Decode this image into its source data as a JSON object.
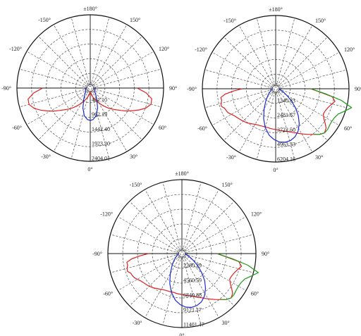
{
  "figure": {
    "colors": {
      "red": "#e02020",
      "blue": "#1a2bd6",
      "green": "#1a9a1a",
      "grid": "#555555",
      "frame": "#111111"
    },
    "angle_labels": {
      "top": "±180°",
      "upper_left": "-150°",
      "upper_right": "150°",
      "left_upper": "-120°",
      "right_upper": "120°",
      "left": "-90°",
      "right": "90°",
      "left_lower": "-60°",
      "right_lower": "60°",
      "lower_left": "-30°",
      "lower_right": "30°",
      "bottom": "0°"
    }
  },
  "chart_data": [
    {
      "type": "polar",
      "ring_labels": [
        "481.10",
        "962.19",
        "1442.40",
        "1923.20",
        "2404.01"
      ],
      "series": [
        {
          "color": "red",
          "points": [
            [
              -90,
              1560
            ],
            [
              -85,
              1860
            ],
            [
              -80,
              2070
            ],
            [
              -75,
              2080
            ],
            [
              -70,
              1950
            ],
            [
              -66,
              1780
            ],
            [
              -62,
              1600
            ],
            [
              -58,
              1430
            ],
            [
              -54,
              1250
            ],
            [
              -50,
              1110
            ],
            [
              -46,
              990
            ],
            [
              -42,
              880
            ],
            [
              -38,
              770
            ],
            [
              -34,
              660
            ],
            [
              -28,
              520
            ],
            [
              -20,
              380
            ],
            [
              -12,
              250
            ],
            [
              -5,
              160
            ],
            [
              0,
              130
            ],
            [
              5,
              160
            ],
            [
              12,
              250
            ],
            [
              20,
              380
            ],
            [
              28,
              520
            ],
            [
              34,
              660
            ],
            [
              38,
              770
            ],
            [
              42,
              880
            ],
            [
              46,
              990
            ],
            [
              50,
              1110
            ],
            [
              54,
              1250
            ],
            [
              58,
              1420
            ],
            [
              62,
              1580
            ],
            [
              66,
              1760
            ],
            [
              70,
              1930
            ],
            [
              75,
              2060
            ],
            [
              80,
              2050
            ],
            [
              85,
              1840
            ],
            [
              90,
              1540
            ]
          ]
        },
        {
          "color": "blue",
          "points": [
            [
              -90,
              140
            ],
            [
              -80,
              150
            ],
            [
              -70,
              160
            ],
            [
              -60,
              175
            ],
            [
              -50,
              200
            ],
            [
              -40,
              280
            ],
            [
              -30,
              430
            ],
            [
              -20,
              700
            ],
            [
              -12,
              930
            ],
            [
              -5,
              1040
            ],
            [
              0,
              1060
            ],
            [
              5,
              1040
            ],
            [
              12,
              930
            ],
            [
              20,
              700
            ],
            [
              30,
              430
            ],
            [
              40,
              280
            ],
            [
              50,
              200
            ],
            [
              60,
              175
            ],
            [
              70,
              160
            ],
            [
              80,
              150
            ],
            [
              90,
              140
            ]
          ]
        }
      ]
    },
    {
      "type": "polar",
      "ring_labels": [
        "1240.83",
        "2481.67",
        "3722.50",
        "4963.33",
        "6204.16"
      ],
      "series": [
        {
          "color": "red",
          "points": [
            [
              -90,
              2840
            ],
            [
              -87,
              3550
            ],
            [
              -84,
              4280
            ],
            [
              -81,
              4700
            ],
            [
              -78,
              4670
            ],
            [
              -75,
              4780
            ],
            [
              -72,
              4830
            ],
            [
              -69,
              4620
            ],
            [
              -66,
              4570
            ],
            [
              -63,
              4500
            ],
            [
              -60,
              4330
            ],
            [
              -56,
              4150
            ],
            [
              -52,
              4040
            ],
            [
              -48,
              3950
            ],
            [
              -44,
              3860
            ],
            [
              -40,
              3770
            ],
            [
              -36,
              3640
            ],
            [
              -32,
              3530
            ],
            [
              -28,
              3440
            ],
            [
              -24,
              3400
            ],
            [
              -20,
              3370
            ],
            [
              -16,
              3360
            ],
            [
              -12,
              3350
            ],
            [
              -8,
              3390
            ],
            [
              -4,
              3420
            ],
            [
              0,
              3450
            ],
            [
              4,
              3510
            ],
            [
              8,
              3590
            ],
            [
              12,
              3660
            ],
            [
              16,
              3780
            ],
            [
              20,
              3920
            ],
            [
              24,
              4080
            ],
            [
              28,
              4300
            ],
            [
              32,
              4520
            ],
            [
              36,
              4780
            ],
            [
              40,
              5050
            ],
            [
              44,
              5370
            ],
            [
              48,
              5560
            ],
            [
              52,
              5410
            ],
            [
              55,
              5110
            ],
            [
              58,
              4810
            ],
            [
              62,
              4560
            ],
            [
              66,
              4590
            ],
            [
              70,
              4700
            ],
            [
              74,
              4880
            ],
            [
              78,
              5130
            ],
            [
              82,
              4830
            ],
            [
              86,
              3680
            ],
            [
              90,
              2950
            ]
          ]
        },
        {
          "color": "blue",
          "points": [
            [
              -90,
              280
            ],
            [
              -80,
              330
            ],
            [
              -70,
              420
            ],
            [
              -60,
              580
            ],
            [
              -50,
              840
            ],
            [
              -40,
              1280
            ],
            [
              -30,
              1960
            ],
            [
              -22,
              2720
            ],
            [
              -15,
              3400
            ],
            [
              -8,
              3970
            ],
            [
              -2,
              4300
            ],
            [
              4,
              4520
            ],
            [
              10,
              4600
            ],
            [
              16,
              4560
            ],
            [
              22,
              4380
            ],
            [
              28,
              4050
            ],
            [
              34,
              3560
            ],
            [
              40,
              2980
            ],
            [
              46,
              2330
            ],
            [
              52,
              1720
            ],
            [
              58,
              1200
            ],
            [
              65,
              780
            ],
            [
              72,
              500
            ],
            [
              80,
              350
            ],
            [
              90,
              300
            ]
          ]
        },
        {
          "color": "green",
          "points": [
            [
              40,
              5050
            ],
            [
              44,
              5370
            ],
            [
              48,
              5580
            ],
            [
              52,
              5580
            ],
            [
              56,
              5510
            ],
            [
              60,
              5490
            ],
            [
              64,
              5550
            ],
            [
              68,
              5710
            ],
            [
              72,
              6130
            ],
            [
              76,
              6620
            ],
            [
              80,
              5630
            ],
            [
              84,
              4300
            ],
            [
              88,
              3310
            ],
            [
              90,
              2990
            ]
          ]
        }
      ]
    },
    {
      "type": "polar",
      "ring_labels": [
        "2280.29",
        "4560.59",
        "6840.88",
        "9121.17",
        "11401.47"
      ],
      "series": [
        {
          "color": "red",
          "points": [
            [
              -90,
              5130
            ],
            [
              -87,
              6420
            ],
            [
              -84,
              7780
            ],
            [
              -81,
              8590
            ],
            [
              -78,
              8550
            ],
            [
              -75,
              8750
            ],
            [
              -72,
              8820
            ],
            [
              -69,
              8430
            ],
            [
              -66,
              8350
            ],
            [
              -63,
              8210
            ],
            [
              -60,
              7920
            ],
            [
              -56,
              7590
            ],
            [
              -52,
              7390
            ],
            [
              -48,
              7230
            ],
            [
              -44,
              7060
            ],
            [
              -40,
              6890
            ],
            [
              -36,
              6650
            ],
            [
              -32,
              6460
            ],
            [
              -28,
              6290
            ],
            [
              -24,
              6210
            ],
            [
              -20,
              6160
            ],
            [
              -16,
              6140
            ],
            [
              -12,
              6120
            ],
            [
              -8,
              6200
            ],
            [
              -4,
              6250
            ],
            [
              0,
              6300
            ],
            [
              4,
              6410
            ],
            [
              8,
              6550
            ],
            [
              12,
              6680
            ],
            [
              16,
              6900
            ],
            [
              20,
              7160
            ],
            [
              24,
              7450
            ],
            [
              28,
              7850
            ],
            [
              32,
              8270
            ],
            [
              36,
              8750
            ],
            [
              40,
              9250
            ],
            [
              44,
              9850
            ],
            [
              48,
              10200
            ],
            [
              52,
              9920
            ],
            [
              55,
              9350
            ],
            [
              58,
              8800
            ],
            [
              62,
              8340
            ],
            [
              66,
              8400
            ],
            [
              70,
              8600
            ],
            [
              74,
              8930
            ],
            [
              78,
              9390
            ],
            [
              82,
              8840
            ],
            [
              86,
              6730
            ],
            [
              90,
              5400
            ]
          ]
        },
        {
          "color": "blue",
          "points": [
            [
              -90,
              510
            ],
            [
              -80,
              610
            ],
            [
              -70,
              770
            ],
            [
              -60,
              1060
            ],
            [
              -50,
              1540
            ],
            [
              -40,
              2340
            ],
            [
              -30,
              3590
            ],
            [
              -22,
              4980
            ],
            [
              -15,
              6220
            ],
            [
              -8,
              7260
            ],
            [
              -2,
              7870
            ],
            [
              4,
              8270
            ],
            [
              10,
              8420
            ],
            [
              16,
              8340
            ],
            [
              22,
              8020
            ],
            [
              28,
              7410
            ],
            [
              34,
              6510
            ],
            [
              40,
              5450
            ],
            [
              46,
              4260
            ],
            [
              52,
              3150
            ],
            [
              58,
              2200
            ],
            [
              65,
              1430
            ],
            [
              72,
              910
            ],
            [
              80,
              640
            ],
            [
              90,
              550
            ]
          ]
        },
        {
          "color": "green",
          "points": [
            [
              40,
              9250
            ],
            [
              44,
              9840
            ],
            [
              48,
              10210
            ],
            [
              52,
              10210
            ],
            [
              56,
              10090
            ],
            [
              60,
              10050
            ],
            [
              64,
              10160
            ],
            [
              68,
              10450
            ],
            [
              72,
              11220
            ],
            [
              76,
              12120
            ],
            [
              80,
              10310
            ],
            [
              84,
              7870
            ],
            [
              88,
              6060
            ],
            [
              90,
              5470
            ]
          ]
        }
      ]
    }
  ]
}
